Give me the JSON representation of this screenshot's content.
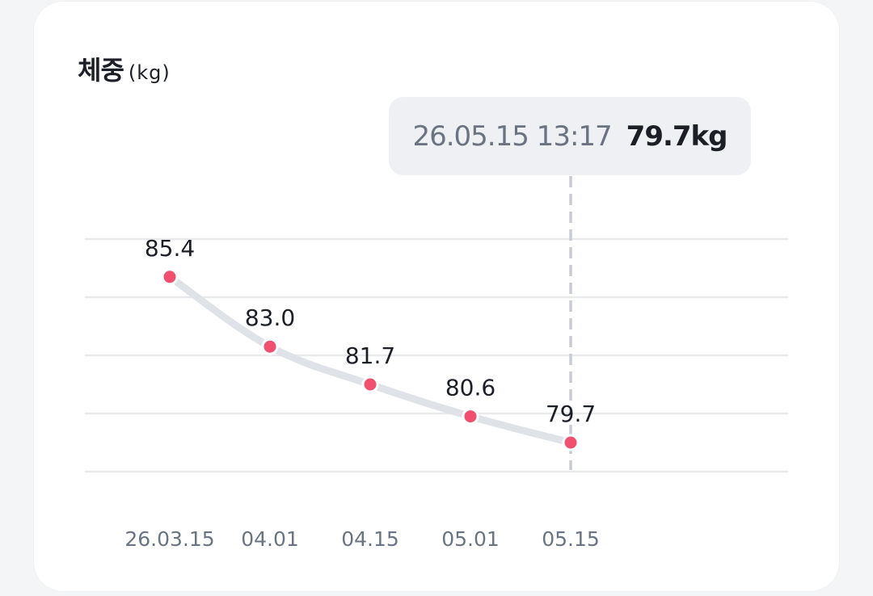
{
  "chart_data": {
    "type": "line",
    "title": "체중",
    "unit": "(kg)",
    "categories": [
      "26.03.15",
      "04.01",
      "04.15",
      "05.01",
      "05.15"
    ],
    "values": [
      85.4,
      83.0,
      81.7,
      80.6,
      79.7
    ],
    "value_labels": [
      "85.4",
      "83.0",
      "81.7",
      "80.6",
      "79.7"
    ],
    "ylim": [
      78.7,
      86.7
    ],
    "grid": true,
    "selected_index": 4
  },
  "tooltip": {
    "datetime": "26.05.15 13:17",
    "value": "79.7kg"
  },
  "colors": {
    "point": "#f0506e",
    "line": "#dfe2e7",
    "grid": "#e7e9ec",
    "crosshair": "#c9ccd3",
    "tooltip_bg": "#eef0f3"
  }
}
